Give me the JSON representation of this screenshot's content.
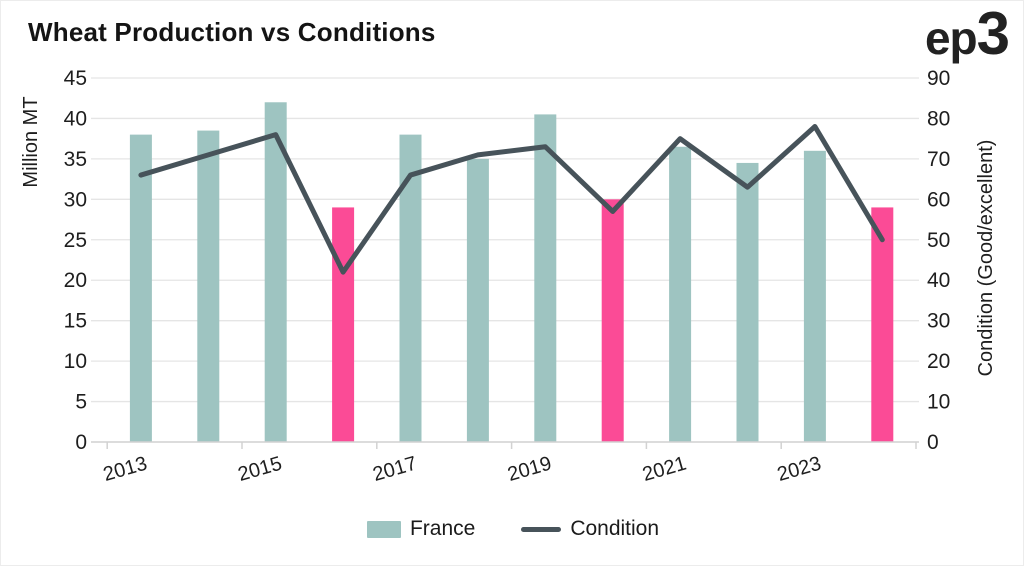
{
  "header": {
    "title": "Wheat Production vs Conditions",
    "logo_ep": "ep",
    "logo_3": "3"
  },
  "chart_data": {
    "type": "combo-bar-line",
    "categories": [
      "2013",
      "2014",
      "2015",
      "2016",
      "2017",
      "2018",
      "2019",
      "2020",
      "2021",
      "2022",
      "2023",
      "2024"
    ],
    "series": [
      {
        "name": "France",
        "type": "bar",
        "axis": "left",
        "values": [
          38,
          38.5,
          42,
          29,
          38,
          35,
          40.5,
          30,
          36.5,
          34.5,
          36,
          29
        ],
        "color": "#9ec4c1",
        "highlight_color": "#fb4b96",
        "highlight_years": [
          "2016",
          "2020",
          "2024"
        ]
      },
      {
        "name": "Condition",
        "type": "line",
        "axis": "right",
        "values": [
          66,
          71,
          76,
          42,
          66,
          71,
          73,
          57,
          75,
          63,
          78,
          50
        ],
        "color": "#47535a"
      }
    ],
    "left_axis": {
      "label": "Million MT",
      "min": 0,
      "max": 45,
      "step": 5,
      "ticks": [
        0,
        5,
        10,
        15,
        20,
        25,
        30,
        35,
        40,
        45
      ]
    },
    "right_axis": {
      "label": "Condition (Good/excellent)",
      "min": 0,
      "max": 90,
      "step": 10,
      "ticks": [
        0,
        10,
        20,
        30,
        40,
        50,
        60,
        70,
        80,
        90
      ]
    },
    "x_tick_labels": [
      "2013",
      "2015",
      "2017",
      "2019",
      "2021",
      "2023"
    ],
    "grid": true,
    "grid_color": "#e5e5e5",
    "axis_color": "#d2d2d2",
    "legend_position": "bottom"
  },
  "legend": {
    "items": [
      {
        "label": "France",
        "swatch": "bar",
        "color": "#9ec4c1"
      },
      {
        "label": "Condition",
        "swatch": "line",
        "color": "#47535a"
      }
    ]
  }
}
